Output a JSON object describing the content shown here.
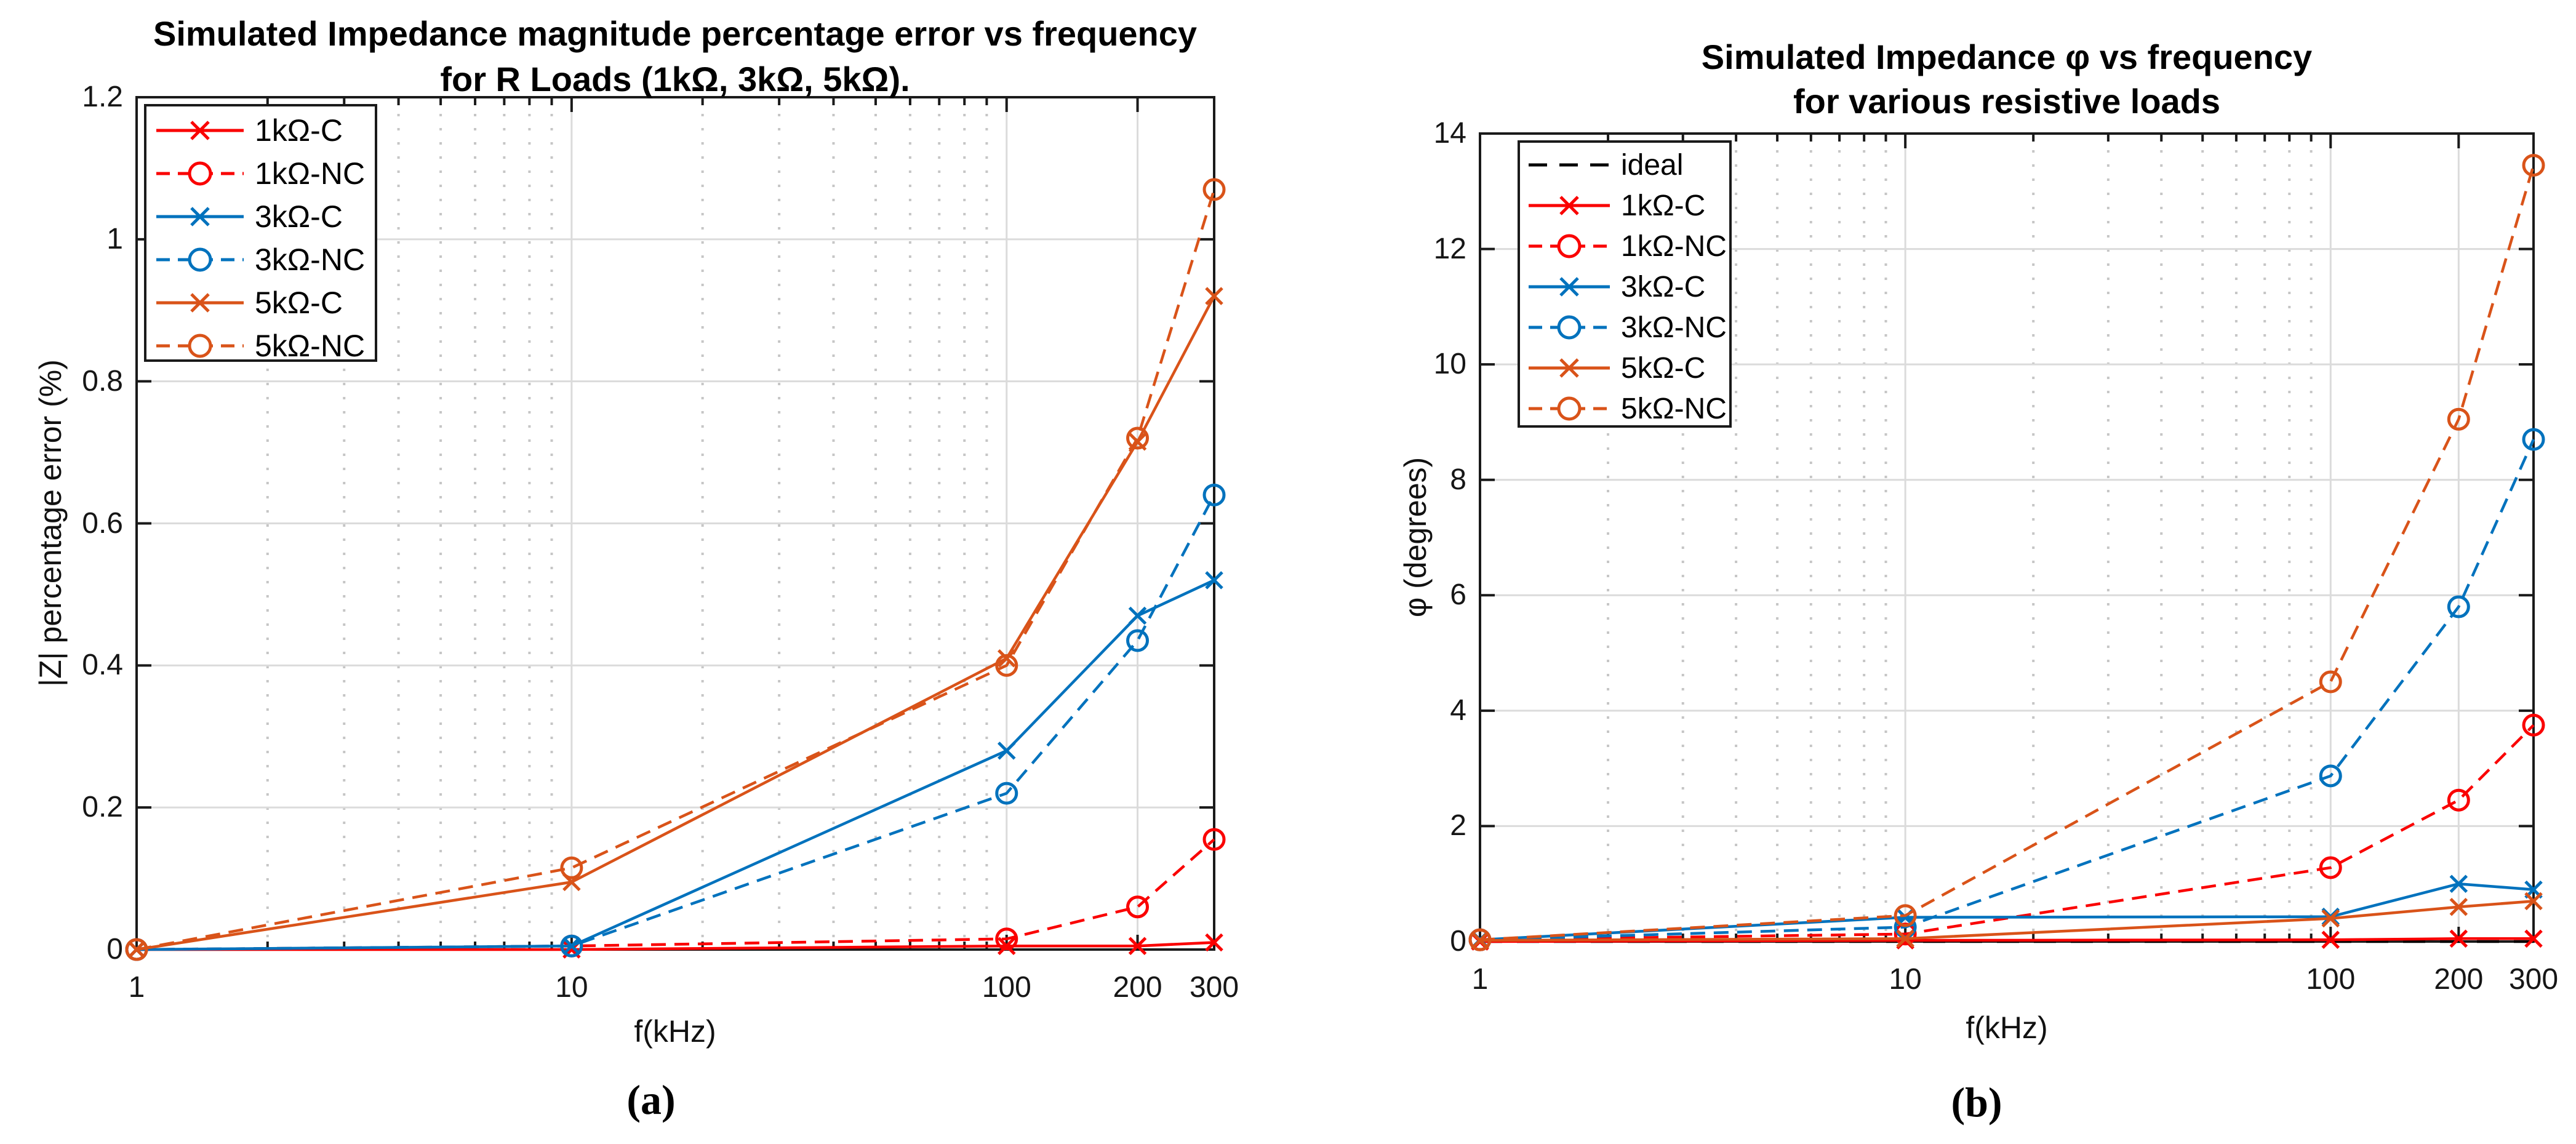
{
  "figure": {
    "background": "#ffffff"
  },
  "palette": {
    "frame": "#1a1a1a",
    "major_grid": "#dbdbdb",
    "minor_grid": "#c6c6c6",
    "red": "#fa0000",
    "blue": "#0072bd",
    "orange": "#d95319",
    "black": "#000000"
  },
  "chart_data": [
    {
      "id": "a",
      "type": "line",
      "x_scale": "log",
      "title_lines": [
        "Simulated Impedance magnitude percentage error vs frequency",
        "for R Loads (1kΩ, 3kΩ, 5kΩ)."
      ],
      "xlabel": "f(kHz)",
      "ylabel": "|Z| percentage error (%)",
      "caption": "(a)",
      "x": [
        1,
        10,
        100,
        200,
        300
      ],
      "x_tick_labels": [
        "1",
        "10",
        "100",
        "200",
        "300"
      ],
      "xlim": [
        1,
        300
      ],
      "ylim": [
        0,
        1.2
      ],
      "y_ticks": [
        0,
        0.2,
        0.4,
        0.6,
        0.8,
        1,
        1.2
      ],
      "y_tick_labels": [
        "0",
        "0.2",
        "0.4",
        "0.6",
        "0.8",
        "1",
        "1.2"
      ],
      "grid": true,
      "minor_grid": true,
      "legend_position": "top-left",
      "series": [
        {
          "name": "1kΩ-C",
          "color": "red",
          "style": "solid",
          "marker": "x",
          "values": [
            0,
            0,
            0.005,
            0.005,
            0.01
          ]
        },
        {
          "name": "1kΩ-NC",
          "color": "red",
          "style": "dashed",
          "marker": "o",
          "values": [
            0,
            0.005,
            0.015,
            0.06,
            0.155
          ]
        },
        {
          "name": "3kΩ-C",
          "color": "blue",
          "style": "solid",
          "marker": "x",
          "values": [
            0,
            0.005,
            0.28,
            0.47,
            0.52
          ]
        },
        {
          "name": "3kΩ-NC",
          "color": "blue",
          "style": "dashed",
          "marker": "o",
          "values": [
            0,
            0.005,
            0.22,
            0.435,
            0.64
          ]
        },
        {
          "name": "5kΩ-C",
          "color": "orange",
          "style": "solid",
          "marker": "x",
          "values": [
            0,
            0.095,
            0.41,
            0.715,
            0.92
          ]
        },
        {
          "name": "5kΩ-NC",
          "color": "orange",
          "style": "dashed",
          "marker": "o",
          "values": [
            0,
            0.115,
            0.4,
            0.72,
            1.07
          ]
        }
      ]
    },
    {
      "id": "b",
      "type": "line",
      "x_scale": "log",
      "title_lines": [
        "Simulated Impedance φ vs frequency",
        "for various resistive loads"
      ],
      "xlabel": "f(kHz)",
      "ylabel": "φ (degrees)",
      "caption": "(b)",
      "x": [
        1,
        10,
        100,
        200,
        300
      ],
      "x_tick_labels": [
        "1",
        "10",
        "100",
        "200",
        "300"
      ],
      "xlim": [
        1,
        300
      ],
      "ylim": [
        0,
        14
      ],
      "y_ticks": [
        0,
        2,
        4,
        6,
        8,
        10,
        12,
        14
      ],
      "y_tick_labels": [
        "0",
        "2",
        "4",
        "6",
        "8",
        "10",
        "12",
        "14"
      ],
      "grid": true,
      "minor_grid": true,
      "legend_position": "top-left",
      "series": [
        {
          "name": "ideal",
          "color": "black",
          "style": "ideal-dashed",
          "marker": "none",
          "values": [
            0,
            0,
            0,
            0,
            0
          ]
        },
        {
          "name": "1kΩ-C",
          "color": "red",
          "style": "solid",
          "marker": "x",
          "values": [
            0,
            0.02,
            0.03,
            0.05,
            0.05
          ]
        },
        {
          "name": "1kΩ-NC",
          "color": "red",
          "style": "dashed",
          "marker": "o",
          "values": [
            0.03,
            0.13,
            1.28,
            2.45,
            3.75
          ]
        },
        {
          "name": "3kΩ-C",
          "color": "blue",
          "style": "solid",
          "marker": "x",
          "values": [
            0.03,
            0.42,
            0.43,
            1.0,
            0.9
          ]
        },
        {
          "name": "3kΩ-NC",
          "color": "blue",
          "style": "dashed",
          "marker": "o",
          "values": [
            0.03,
            0.25,
            2.87,
            5.8,
            8.7
          ]
        },
        {
          "name": "5kΩ-C",
          "color": "orange",
          "style": "solid",
          "marker": "x",
          "values": [
            0.02,
            0.05,
            0.4,
            0.6,
            0.7
          ]
        },
        {
          "name": "5kΩ-NC",
          "color": "orange",
          "style": "dashed",
          "marker": "o",
          "values": [
            0.03,
            0.45,
            4.5,
            9.05,
            13.45
          ]
        }
      ]
    }
  ]
}
